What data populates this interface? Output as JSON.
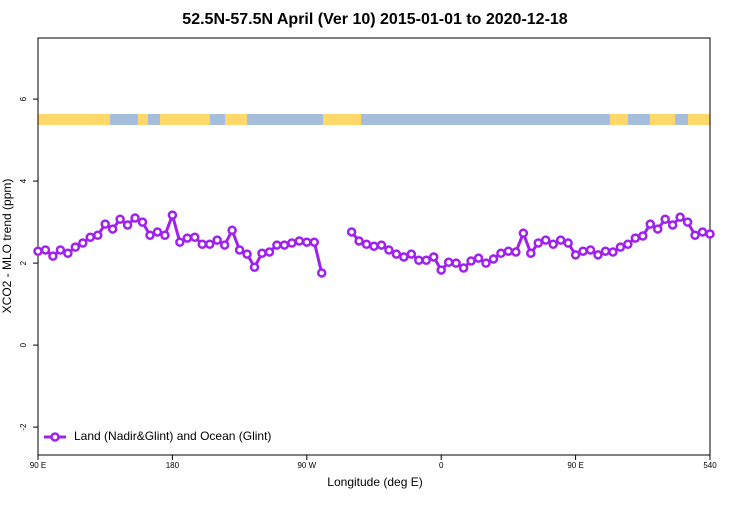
{
  "chart_data": {
    "type": "line",
    "title": "52.5N-57.5N April (Ver 10)   2015-01-01 to 2020-12-18",
    "xlabel": "Longitude (deg E)",
    "ylabel": "XCO2 - MLO trend (ppm)",
    "x": [
      90,
      95,
      100,
      105,
      110,
      115,
      120,
      125,
      130,
      135,
      140,
      145,
      150,
      155,
      160,
      165,
      170,
      175,
      180,
      185,
      190,
      195,
      200,
      205,
      210,
      215,
      220,
      225,
      230,
      235,
      240,
      245,
      250,
      255,
      260,
      265,
      270,
      275,
      280,
      285,
      290,
      295,
      300,
      305,
      310,
      315,
      320,
      325,
      330,
      335,
      340,
      345,
      350,
      355,
      360,
      365,
      370,
      375,
      380,
      385,
      390,
      395,
      400,
      405,
      410,
      415,
      420,
      425,
      430,
      435,
      440,
      445,
      450,
      455,
      460,
      465,
      470,
      475,
      480,
      485,
      490,
      495,
      500,
      505,
      510,
      515,
      520,
      525,
      530,
      535,
      540
    ],
    "series": [
      {
        "name": "Land (Nadir&Glint) and Ocean (Glint)",
        "color": "#a020f0",
        "values": [
          2.29,
          2.32,
          2.17,
          2.32,
          2.24,
          2.39,
          2.49,
          2.63,
          2.68,
          2.95,
          2.83,
          3.07,
          2.93,
          3.1,
          3.0,
          2.68,
          2.76,
          2.68,
          3.17,
          2.51,
          2.61,
          2.63,
          2.46,
          2.46,
          2.56,
          2.44,
          2.8,
          2.32,
          2.22,
          1.9,
          2.24,
          2.27,
          2.44,
          2.44,
          2.49,
          2.54,
          2.51,
          2.51,
          1.76,
          null,
          null,
          null,
          2.76,
          2.54,
          2.46,
          2.41,
          2.44,
          2.32,
          2.22,
          2.15,
          2.22,
          2.07,
          2.07,
          2.15,
          1.83,
          2.02,
          2.0,
          1.88,
          2.05,
          2.12,
          2.0,
          2.1,
          2.24,
          2.29,
          2.27,
          2.73,
          2.24,
          2.49,
          2.56,
          2.46,
          2.56,
          2.49,
          2.2,
          2.29,
          2.32,
          2.2,
          2.29,
          2.27,
          2.39,
          2.46,
          2.61,
          2.66,
          2.95,
          2.83,
          3.07,
          2.93,
          3.12,
          3.0,
          2.68,
          2.76,
          2.71
        ]
      }
    ],
    "xlim": [
      90,
      540
    ],
    "xticks": [
      {
        "value": 90,
        "label": "90 E"
      },
      180,
      {
        "value": 270,
        "label": "90 W"
      },
      {
        "value": 360,
        "label": "0"
      },
      {
        "value": 450,
        "label": "90 E"
      },
      540
    ],
    "ylim": [
      -2.68,
      7.49
    ],
    "yticks": [
      -2,
      0,
      2,
      4,
      6
    ],
    "legend": "bottom-left"
  }
}
